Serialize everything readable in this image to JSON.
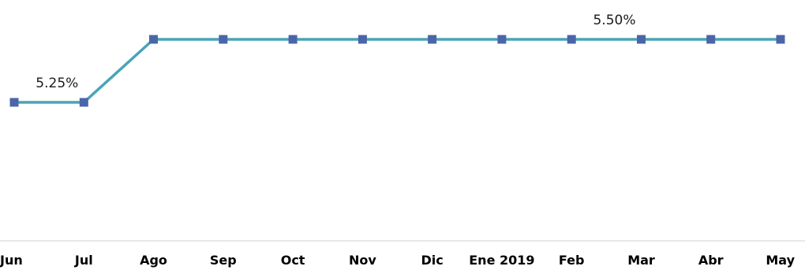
{
  "chart_data": {
    "type": "line",
    "categories": [
      "Jun",
      "Jul",
      "Ago",
      "Sep",
      "Oct",
      "Nov",
      "Dic",
      "Ene 2019",
      "Feb",
      "Mar",
      "Abr",
      "May"
    ],
    "series": [
      {
        "values": [
          5.25,
          5.25,
          5.5,
          5.5,
          5.5,
          5.5,
          5.5,
          5.5,
          5.5,
          5.5,
          5.5,
          5.5
        ]
      }
    ],
    "data_labels": [
      {
        "index": 1,
        "text": "5.25%"
      },
      {
        "index": 9,
        "text": "5.50%"
      }
    ],
    "title": "",
    "xlabel": "",
    "ylabel": "",
    "y_axis_visible": false,
    "ylim": [
      4.7,
      5.5
    ],
    "grid": false,
    "legend": "none",
    "colors": {
      "line": "#4AA3B7",
      "marker": "#4A66A8",
      "axis": "#d0d0d0",
      "text": "#000000"
    }
  }
}
